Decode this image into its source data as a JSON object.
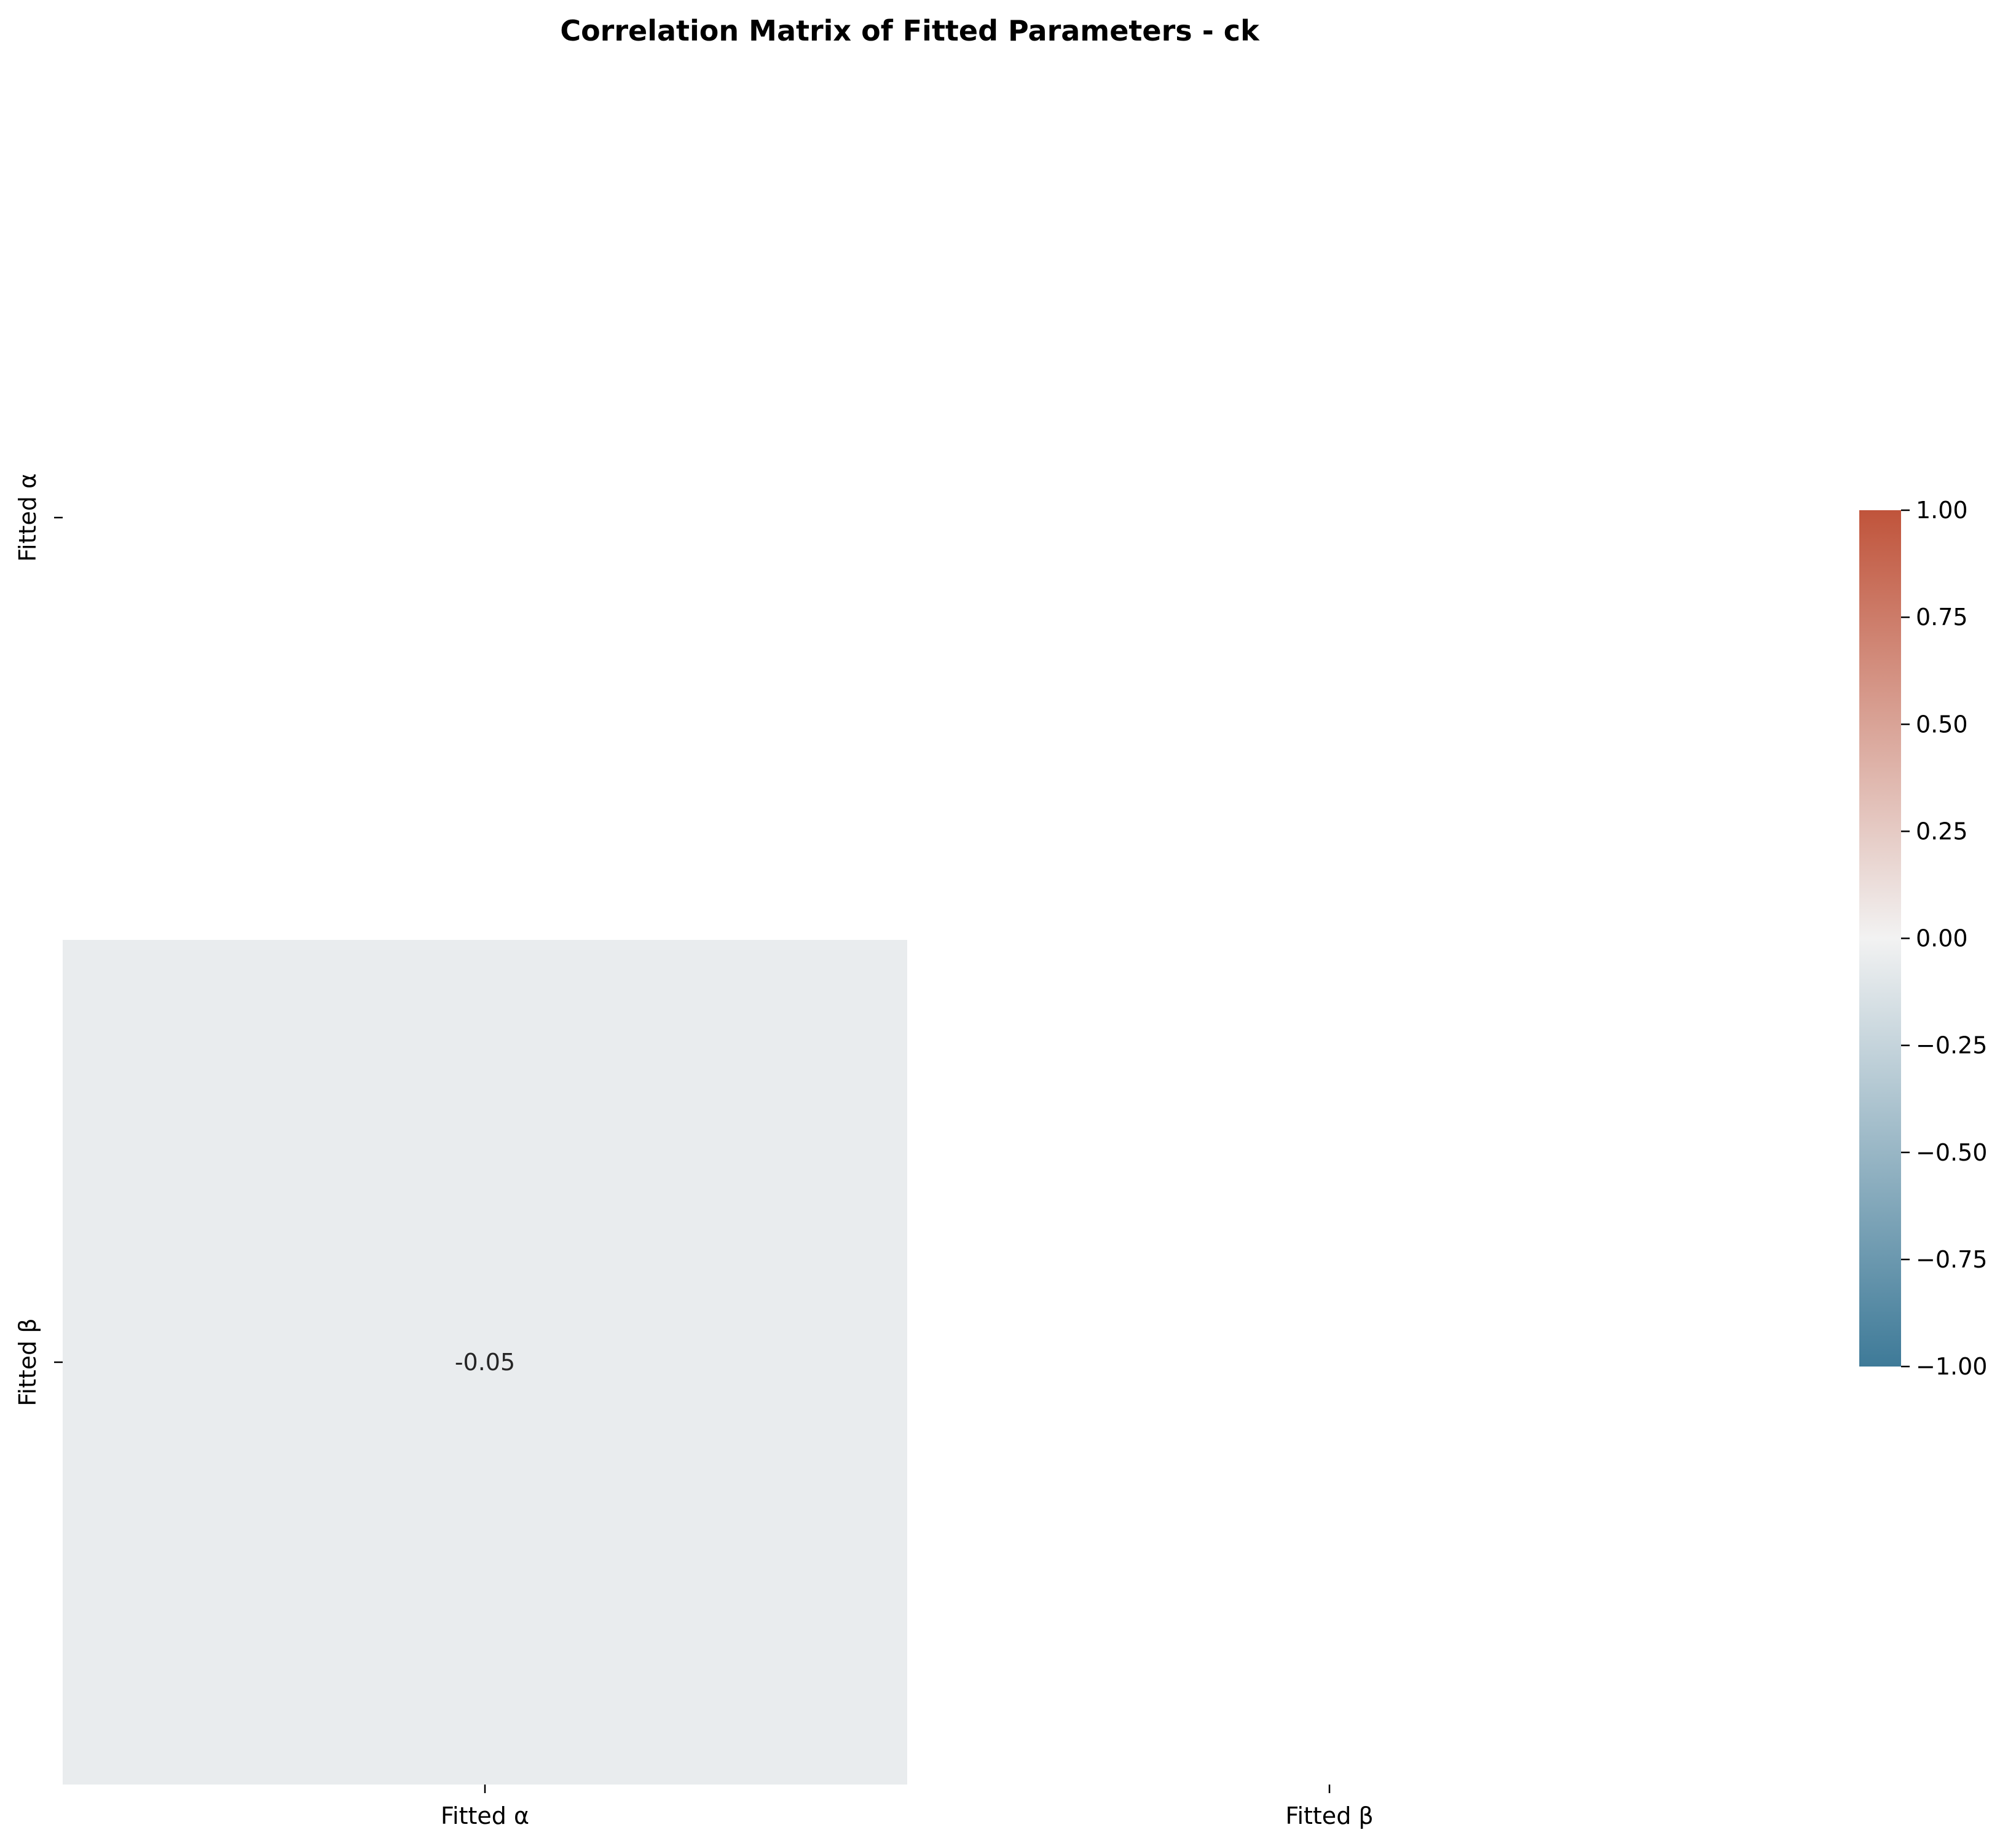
{
  "chart_data": {
    "type": "heatmap",
    "title": "Correlation Matrix of Fitted Parameters - ck",
    "row_labels": [
      "Fitted α",
      "Fitted β"
    ],
    "col_labels": [
      "Fitted α",
      "Fitted β"
    ],
    "cells": [
      {
        "row": 1,
        "col": 0,
        "value": -0.05,
        "label": "-0.05"
      }
    ],
    "masked": "upper triangle and diagonal",
    "colorbar": {
      "min": -1.0,
      "max": 1.0,
      "ticks": [
        1.0,
        0.75,
        0.5,
        0.25,
        0.0,
        -0.25,
        -0.5,
        -0.75,
        -1.0
      ],
      "tick_labels": [
        "1.00",
        "0.75",
        "0.50",
        "0.25",
        "0.00",
        "−0.25",
        "−0.50",
        "−0.75",
        "−1.00"
      ],
      "colors": {
        "low": "#3e7a98",
        "mid": "#f2f2f2",
        "high": "#c0543b"
      }
    }
  }
}
